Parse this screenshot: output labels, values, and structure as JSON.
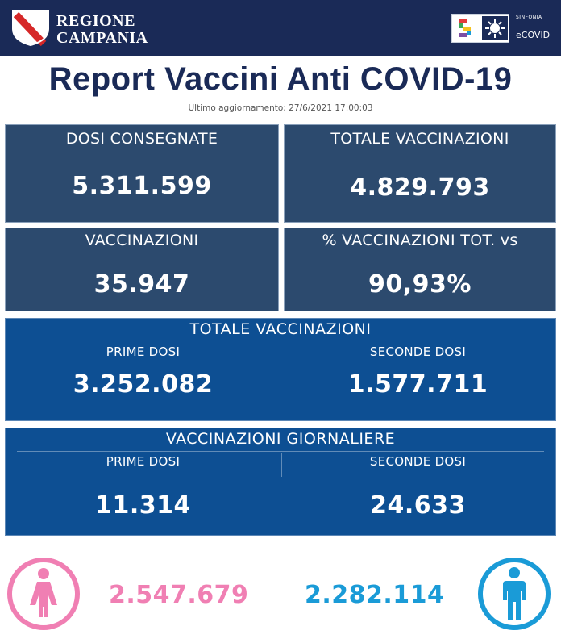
{
  "header": {
    "brand_line1": "REGIONE",
    "brand_line2": "CAMPANIA",
    "partner_small": "SINFONIA",
    "partner_name": "eCOVID",
    "bar_color": "#1a2a57"
  },
  "title": "Report Vaccini Anti COVID-19",
  "updated": "Ultimo aggiornamento: 27/6/2021  17:00:03",
  "stats": {
    "dosi_consegnate": {
      "label": "DOSI  CONSEGNATE",
      "value": "5.311.599"
    },
    "totale_vaccinazioni": {
      "label": "TOTALE VACCINAZIONI",
      "value": "4.829.793"
    },
    "vaccinazioni": {
      "label": "VACCINAZIONI",
      "value": "35.947"
    },
    "percentuale": {
      "label": "% VACCINAZIONI TOT. vs",
      "value": "90,93%"
    }
  },
  "totale_block": {
    "heading": "TOTALE VACCINAZIONI",
    "prime_label": "PRIME DOSI",
    "prime_value": "3.252.082",
    "seconde_label": "SECONDE DOSI",
    "seconde_value": "1.577.711"
  },
  "giornaliere_block": {
    "heading": "VACCINAZIONI GIORNALIERE",
    "prime_label": "PRIME DOSI",
    "prime_value": "11.314",
    "seconde_label": "SECONDE DOSI",
    "seconde_value": "24.633"
  },
  "gender": {
    "female_value": "2.547.679",
    "male_value": "2.282.114",
    "female_color": "#f07fb3",
    "male_color": "#1a9bd7",
    "female_icon": "female-person-icon",
    "male_icon": "male-person-icon"
  },
  "colors": {
    "panel": "#2c4a6e",
    "wide_panel": "#0d4f93",
    "title": "#1a2a57"
  }
}
